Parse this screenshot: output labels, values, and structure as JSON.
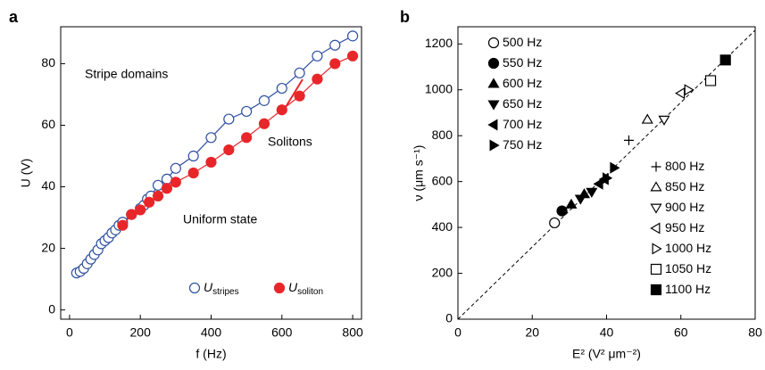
{
  "chart_data": [
    {
      "type": "line",
      "panel_label": "a",
      "xlabel": "f (Hz)",
      "ylabel": "U (V)",
      "xlim": [
        -25,
        825
      ],
      "ylim": [
        -3,
        92
      ],
      "xticks": [
        0,
        200,
        400,
        600,
        800
      ],
      "yticks": [
        0,
        20,
        40,
        60,
        80
      ],
      "annotations": [
        "Stripe domains",
        "Solitons",
        "Uniform state"
      ],
      "series": [
        {
          "name": "U",
          "subscript": "stripes",
          "color": "#2e4fa0",
          "marker": "circle-open",
          "x": [
            20,
            30,
            40,
            50,
            60,
            70,
            80,
            90,
            100,
            110,
            120,
            130,
            140,
            150,
            175,
            200,
            210,
            220,
            230,
            250,
            275,
            300,
            350,
            400,
            450,
            500,
            550,
            600,
            650,
            700,
            750,
            800
          ],
          "values": [
            12,
            12.5,
            13.5,
            15,
            16.5,
            18,
            19.5,
            21.5,
            22.5,
            23.5,
            25,
            26,
            27.5,
            28.5,
            31,
            33,
            34,
            36,
            37,
            40.5,
            42.5,
            46,
            50,
            56,
            62,
            64.5,
            68,
            72,
            77,
            82.5,
            86,
            89
          ]
        },
        {
          "name": "U",
          "subscript": "soliton",
          "color": "#e8262a",
          "marker": "circle",
          "x": [
            150,
            175,
            200,
            225,
            250,
            275,
            300,
            350,
            400,
            450,
            500,
            550,
            600,
            650,
            700,
            750,
            800
          ],
          "values": [
            27.5,
            31,
            32.5,
            35,
            37,
            39.5,
            41.5,
            44.5,
            48,
            52,
            56,
            60.5,
            65,
            69.5,
            75,
            80,
            82.5
          ]
        }
      ]
    },
    {
      "type": "scatter",
      "panel_label": "b",
      "xlabel": "E² (V² μm⁻²)",
      "ylabel": "ν (μm s⁻¹)",
      "xlim": [
        0,
        80
      ],
      "ylim": [
        0,
        1275
      ],
      "xticks": [
        0,
        20,
        40,
        60,
        80
      ],
      "yticks": [
        0,
        200,
        400,
        600,
        800,
        1000,
        1200
      ],
      "fit_line": {
        "x": [
          0,
          80
        ],
        "values": [
          0,
          1260
        ]
      },
      "series": [
        {
          "name": "500 Hz",
          "marker": "circle-open",
          "x": [
            26
          ],
          "values": [
            420
          ]
        },
        {
          "name": "550 Hz",
          "marker": "circle",
          "x": [
            28
          ],
          "values": [
            472
          ]
        },
        {
          "name": "600 Hz",
          "marker": "triangle-up",
          "x": [
            30.5,
            34
          ],
          "values": [
            500,
            545
          ]
        },
        {
          "name": "650 Hz",
          "marker": "triangle-down",
          "x": [
            33,
            36
          ],
          "values": [
            525,
            555
          ]
        },
        {
          "name": "700 Hz",
          "marker": "triangle-left",
          "x": [
            38,
            39.5
          ],
          "values": [
            590,
            610
          ]
        },
        {
          "name": "750 Hz",
          "marker": "triangle-right",
          "x": [
            40,
            42
          ],
          "values": [
            615,
            660
          ]
        },
        {
          "name": "800 Hz",
          "marker": "plus",
          "x": [
            46
          ],
          "values": [
            780
          ]
        },
        {
          "name": "850 Hz",
          "marker": "triangle-up-open",
          "x": [
            51
          ],
          "values": [
            870
          ]
        },
        {
          "name": "900 Hz",
          "marker": "triangle-down-open",
          "x": [
            55.5
          ],
          "values": [
            870
          ]
        },
        {
          "name": "950 Hz",
          "marker": "triangle-left-open",
          "x": [
            60
          ],
          "values": [
            985
          ]
        },
        {
          "name": "1000 Hz",
          "marker": "triangle-right-open",
          "x": [
            62
          ],
          "values": [
            1000
          ]
        },
        {
          "name": "1050 Hz",
          "marker": "square-open",
          "x": [
            68
          ],
          "values": [
            1040
          ]
        },
        {
          "name": "1100 Hz",
          "marker": "square",
          "x": [
            72
          ],
          "values": [
            1130
          ]
        }
      ]
    }
  ]
}
